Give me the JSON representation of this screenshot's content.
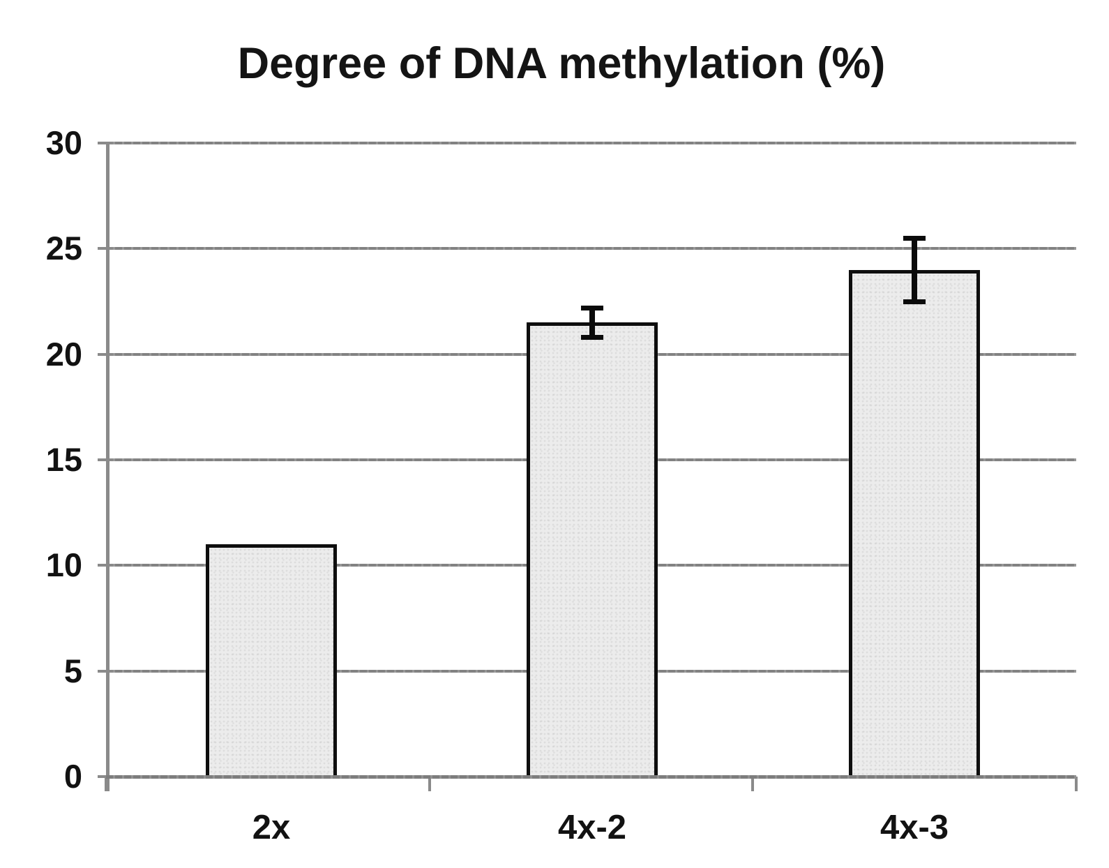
{
  "chart_data": {
    "type": "bar",
    "title": "Degree of DNA methylation (%)",
    "categories": [
      "2x",
      "4x-2",
      "4x-3"
    ],
    "values": [
      11,
      21.5,
      24
    ],
    "error_bars": [
      null,
      0.7,
      1.5
    ],
    "ylim": [
      0,
      30
    ],
    "yticks": [
      0,
      5,
      10,
      15,
      20,
      25,
      30
    ],
    "ytick_labels": [
      "0",
      "5",
      "10",
      "15",
      "20",
      "25",
      "30"
    ],
    "xlabel": "",
    "ylabel": "",
    "grid": "horizontal",
    "legend": "none",
    "colors": {
      "background": "#ffffff",
      "bar_fill": "#ececec",
      "bar_border": "#0e0e0e",
      "gridline": "#8a8a8a",
      "axis": "#8a8a8a",
      "text": "#121212",
      "error_bar": "#0b0b0b"
    }
  }
}
